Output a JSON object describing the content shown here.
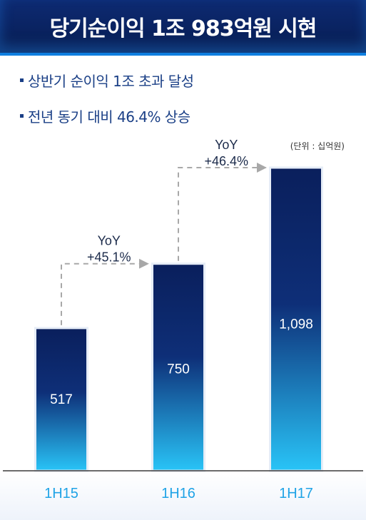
{
  "header": {
    "title": "당기순이익 1조 983억원 시현"
  },
  "bullets": [
    "상반기 순이익 1조 초과 달성",
    "전년 동기 대비 46.4% 상승"
  ],
  "unit_label": "(단위 : 십억원)",
  "colors": {
    "bar_top": "#0a1f5c",
    "bar_bottom": "#29c4f7",
    "bar_border": "#e6edf7",
    "axis": "#3a3a3a",
    "tick_label": "#1fa3e6",
    "arrow": "#a8a8a8",
    "yoy_text": "#1b2a4a"
  },
  "chart_data": {
    "type": "bar",
    "categories": [
      "1H15",
      "1H16",
      "1H17"
    ],
    "values": [
      517,
      750,
      1098
    ],
    "value_labels": [
      "517",
      "750",
      "1,098"
    ],
    "ylim": [
      0,
      1150
    ],
    "annotations": [
      {
        "from": "1H15",
        "to": "1H16",
        "line1": "YoY",
        "line2": "+45.1%"
      },
      {
        "from": "1H16",
        "to": "1H17",
        "line1": "YoY",
        "line2": "+46.4%"
      }
    ]
  }
}
